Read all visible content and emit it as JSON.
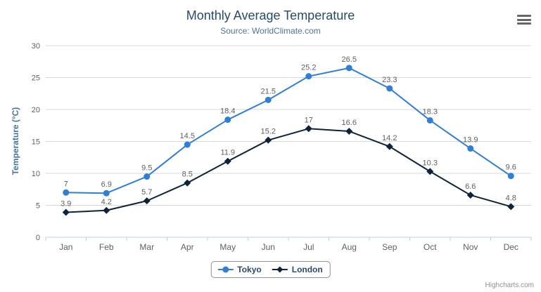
{
  "chart_data": {
    "type": "line",
    "title": "Monthly Average Temperature",
    "subtitle": "Source: WorldClimate.com",
    "xlabel": "",
    "ylabel": "Temperature (°C)",
    "categories": [
      "Jan",
      "Feb",
      "Mar",
      "Apr",
      "May",
      "Jun",
      "Jul",
      "Aug",
      "Sep",
      "Oct",
      "Nov",
      "Dec"
    ],
    "ylim": [
      0,
      30
    ],
    "ytick_interval": 5,
    "grid": true,
    "legend_position": "bottom-center",
    "series": [
      {
        "name": "Tokyo",
        "color": "#2f7ed8",
        "marker": "circle",
        "values": [
          7,
          6.9,
          9.5,
          14.5,
          18.4,
          21.5,
          25.2,
          26.5,
          23.3,
          18.3,
          13.9,
          9.6
        ]
      },
      {
        "name": "London",
        "color": "#0d233a",
        "marker": "diamond",
        "values": [
          3.9,
          4.2,
          5.7,
          8.5,
          11.9,
          15.2,
          17,
          16.6,
          14.2,
          10.3,
          6.6,
          4.8
        ]
      }
    ]
  },
  "colors": {
    "title": "#274b6d",
    "subtitle": "#4d759e",
    "axis_title": "#4572a7",
    "axis_labels": "#606060",
    "data_labels": "#606060",
    "grid_line": "#d8d8d8",
    "axis_line": "#c0d0e0",
    "legend_border": "#909090",
    "menu_icon": "#666666",
    "credits": "#909090"
  },
  "ui": {
    "credits_label": "Highcharts.com",
    "menu_icon": "hamburger-menu-icon"
  }
}
